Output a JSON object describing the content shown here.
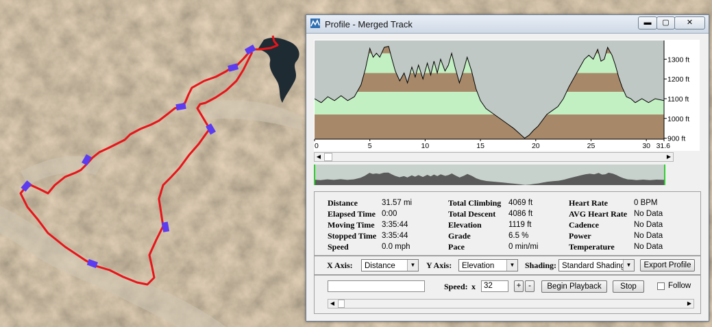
{
  "window": {
    "title": "Profile - Merged Track",
    "minimize_glyph": "▬",
    "maximize_glyph": "▢",
    "close_glyph": "✕",
    "icon": "profile-app-icon"
  },
  "chart_data": {
    "type": "area",
    "xlabel": "",
    "ylabel": "",
    "x_ticks": [
      "0",
      "5",
      "10",
      "15",
      "20",
      "25",
      "30",
      "31.6"
    ],
    "y_ticks": [
      "1300 ft",
      "1200 ft",
      "1100 ft",
      "1000 ft",
      "900 ft"
    ],
    "xlim": [
      0,
      31.6
    ],
    "ylim": [
      895,
      1395
    ],
    "band_breaks": [
      1020,
      1135,
      1230,
      1330
    ],
    "band_colors": [
      "#a7896a",
      "#c3f0c3"
    ],
    "background_color": "#c0c8c5",
    "line_color": "#000000",
    "series": [
      {
        "x": [
          0,
          0.6,
          1.2,
          1.8,
          2.4,
          3.0,
          3.6,
          4.2,
          4.6,
          5.0,
          5.3,
          5.6,
          5.9,
          6.3,
          6.7,
          7.0,
          7.3,
          7.7,
          8.1,
          8.4,
          8.8,
          9.1,
          9.4,
          9.8,
          10.2,
          10.5,
          10.8,
          11.1,
          11.4,
          11.8,
          12.1,
          12.4,
          12.7,
          13.1,
          13.5,
          13.8,
          14.2,
          14.6,
          15.0,
          15.5,
          16.0,
          16.5,
          17.0,
          17.5,
          18.0,
          18.5,
          19.0,
          19.4,
          19.8,
          20.2,
          20.6,
          21.0,
          21.5,
          22.0,
          22.5,
          23.0,
          23.5,
          24.0,
          24.4,
          24.8,
          25.2,
          25.6,
          25.9,
          26.2,
          26.5,
          26.9,
          27.2,
          27.5,
          27.8,
          28.2,
          28.6,
          29.0,
          29.6,
          30.2,
          30.8,
          31.6
        ],
        "values": [
          1100,
          1080,
          1110,
          1090,
          1115,
          1090,
          1110,
          1170,
          1250,
          1355,
          1310,
          1330,
          1310,
          1360,
          1365,
          1300,
          1240,
          1190,
          1230,
          1180,
          1260,
          1210,
          1270,
          1200,
          1280,
          1220,
          1290,
          1230,
          1300,
          1240,
          1270,
          1330,
          1260,
          1180,
          1250,
          1310,
          1240,
          1150,
          1090,
          1050,
          1030,
          1010,
          990,
          970,
          950,
          925,
          900,
          915,
          940,
          960,
          990,
          1020,
          1040,
          1060,
          1100,
          1160,
          1210,
          1260,
          1300,
          1320,
          1300,
          1350,
          1290,
          1300,
          1360,
          1320,
          1270,
          1210,
          1160,
          1110,
          1100,
          1080,
          1100,
          1080,
          1100,
          1090
        ]
      }
    ]
  },
  "stats": {
    "col1": [
      {
        "label": "Distance",
        "value": "31.57 mi"
      },
      {
        "label": "Elapsed Time",
        "value": "0:00"
      },
      {
        "label": "Moving Time",
        "value": "3:35:44"
      },
      {
        "label": "Stopped Time",
        "value": "3:35:44"
      },
      {
        "label": "Speed",
        "value": "0.0 mph"
      }
    ],
    "col2": [
      {
        "label": "Total Climbing",
        "value": "4069 ft"
      },
      {
        "label": "Total Descent",
        "value": "4086 ft"
      },
      {
        "label": "Elevation",
        "value": "1119 ft"
      },
      {
        "label": "Grade",
        "value": "6.5 %"
      },
      {
        "label": "Pace",
        "value": "0 min/mi"
      }
    ],
    "col3": [
      {
        "label": "Heart Rate",
        "value": "0 BPM"
      },
      {
        "label": "AVG Heart Rate",
        "value": "No Data"
      },
      {
        "label": "Cadence",
        "value": "No Data"
      },
      {
        "label": "Power",
        "value": "No Data"
      },
      {
        "label": "Temperature",
        "value": "No Data"
      }
    ]
  },
  "controls": {
    "x_axis_label": "X Axis:",
    "x_axis_value": "Distance",
    "y_axis_label": "Y Axis:",
    "y_axis_value": "Elevation",
    "shading_label": "Shading:",
    "shading_value": "Standard Shading",
    "export_label": "Export Profile"
  },
  "playback": {
    "status_text": "",
    "speed_label": "Speed:",
    "speed_prefix": "x",
    "speed_value": "32",
    "plus": "+",
    "minus": "-",
    "begin_label": "Begin Playback",
    "stop_label": "Stop",
    "follow_label": "Follow",
    "follow_checked": false
  },
  "map": {
    "track_color": "#e8141a",
    "marker_color": "#5b3cf0"
  }
}
